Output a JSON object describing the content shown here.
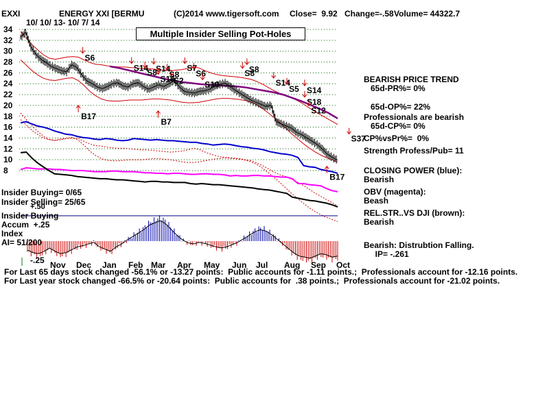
{
  "header": {
    "ticker": "EXXI",
    "company": "ENERGY XXI [BERMU",
    "copyright": "(C)2014 www.tigersoft.com",
    "close": "Close=  9.92",
    "change": "Change=-.58",
    "volume": "Volume= 44322.7",
    "date_range": "10/ 10/ 13- 10/ 7/ 14"
  },
  "chart_title": "Multiple Insider Selling Pot-Holes",
  "right_panel": [
    {
      "text": "BEARISH PRICE TREND",
      "bold": true
    },
    {
      "text": "   65d-PR%= 0%"
    },
    {
      "text": "   65d-OP%= 22%"
    },
    {
      "text": "Professionals are bearish"
    },
    {
      "text": "   65d-CP%= 0%"
    },
    {
      "text": "CP%vsPr%=  0%"
    },
    {
      "text": "Strength Profess/Pub= 11"
    },
    {
      "text": "CLOSING POWER (blue):"
    },
    {
      "text": "Bearish"
    },
    {
      "text": "OBV (magenta):"
    },
    {
      "text": "Beash"
    },
    {
      "text": "REL.STR..VS DJI (brown):"
    },
    {
      "text": "Bearish"
    },
    {
      "text": "Bearish: Distrubtion Falling."
    },
    {
      "text": "     IP= -.261"
    }
  ],
  "left_panel": {
    "insider_buying": "Insider Buying= 0/65",
    "insider_selling": "Insider Selling= 25/65",
    "plus50": "+.50",
    "insider_buying_label": "Insider Buying",
    "accum": "Accum  +.25",
    "index": "Index",
    "ai": "AI= 51/200",
    "minus25": "-.25"
  },
  "footer": {
    "line1": "For Last 65 days stock changed -56.1% or -13.27 points:  Public accounts for -1.11 points.;  Professionals account for -12.16 points.",
    "line2": "For Last year stock changed -66.5% or -20.64 points:  Public accounts for  .38 points.;  Professionals account for -21.02 points."
  },
  "colors": {
    "price": "#000000",
    "bands": "#cc0000",
    "ma": "#800080",
    "closing_power": "#0000cc",
    "obv": "#ff00ff",
    "relstr": "#000000",
    "signal": "#cc0000",
    "accum_pos": "#0000aa",
    "accum_neg": "#cc0000",
    "grid": "#006600"
  },
  "chart_data": {
    "type": "line",
    "y_ticks": [
      34,
      32,
      30,
      28,
      26,
      24,
      22,
      20,
      18,
      16,
      14,
      12,
      10,
      8
    ],
    "ylim": [
      8,
      35
    ],
    "x_months": [
      "Nov",
      "Dec",
      "Jan",
      "Feb",
      "Mar",
      "Apr",
      "May",
      "Jun",
      "Jul",
      "Aug",
      "Sep",
      "Oct"
    ],
    "price_weekly": [
      32.6,
      33.5,
      30.8,
      29.4,
      28.5,
      27.9,
      27.2,
      26.8,
      26.4,
      26.2,
      27.5,
      27.0,
      25.6,
      24.5,
      24.0,
      23.4,
      23.1,
      23.5,
      24.0,
      24.2,
      23.6,
      23.4,
      24.0,
      24.2,
      23.5,
      23.0,
      23.4,
      23.8,
      23.5,
      24.0,
      24.6,
      23.5,
      22.6,
      22.4,
      22.3,
      22.6,
      22.7,
      23.0,
      23.6,
      23.9,
      24.1,
      23.5,
      22.8,
      22.2,
      21.6,
      21.0,
      20.6,
      20.2,
      19.8,
      20.0,
      17.0,
      16.6,
      16.2,
      15.8,
      15.0,
      14.6,
      14.0,
      13.4,
      12.8,
      12.0,
      11.0,
      10.4,
      9.92
    ],
    "upper_band": [
      33.6,
      32.4,
      31.2,
      30.2,
      29.3,
      28.7,
      28.5,
      28.7,
      28.9,
      29.0,
      28.9,
      28.4,
      27.9,
      27.6,
      27.5,
      27.3,
      27.2,
      27.1,
      27.1,
      27.0,
      26.9,
      26.8,
      26.8,
      26.7,
      26.6,
      26.5,
      26.4,
      26.5,
      26.6,
      26.8,
      27.1,
      26.9,
      26.4,
      26.0,
      25.7,
      25.5,
      25.4,
      25.3,
      25.2,
      25.0,
      24.8,
      24.4,
      23.9,
      23.3,
      22.7,
      22.2,
      21.9,
      21.4,
      20.9,
      20.3,
      19.6,
      18.9,
      18.3,
      17.7,
      17.1,
      16.5
    ],
    "lower_band": [
      28.4,
      27.4,
      26.4,
      25.6,
      25.0,
      24.7,
      24.6,
      24.8,
      25.0,
      25.1,
      24.6,
      23.7,
      22.6,
      21.8,
      21.2,
      20.9,
      20.8,
      20.8,
      20.9,
      21.0,
      21.0,
      21.0,
      21.1,
      21.2,
      21.2,
      21.1,
      21.0,
      20.8,
      20.6,
      20.5,
      20.5,
      20.6,
      20.8,
      21.0,
      21.2,
      21.3,
      21.3,
      21.2,
      21.1,
      20.9,
      20.6,
      20.1,
      19.4,
      18.6,
      17.7,
      16.8,
      15.8,
      14.8,
      13.9,
      13.0,
      12.2,
      11.5,
      10.9,
      10.4,
      10.0,
      9.6
    ],
    "moving_avg": [
      27.2,
      26.9,
      26.5,
      26.1,
      25.7,
      25.3,
      24.9,
      24.6,
      24.3,
      24.1,
      23.9,
      23.8,
      23.7,
      23.6,
      23.5,
      23.3,
      23.0,
      22.7,
      22.4,
      22.0,
      21.4,
      20.8,
      20.1,
      19.4,
      18.6,
      17.6
    ],
    "closing_power": [
      16.8,
      17.0,
      16.6,
      16.2,
      16.0,
      15.7,
      15.3,
      15.0,
      14.7,
      14.6,
      14.3,
      14.1,
      14.0,
      13.8,
      13.7,
      13.9,
      13.8,
      13.6,
      13.5,
      13.6,
      13.9,
      13.8,
      13.7,
      13.6,
      13.7,
      13.6,
      13.5,
      13.5,
      13.4,
      13.3,
      13.2,
      13.2,
      13.0,
      12.9,
      12.7,
      12.8,
      12.9,
      12.8,
      12.6,
      12.4,
      12.3,
      12.1,
      12.0,
      11.8,
      11.5,
      11.3,
      11.1,
      11.0,
      10.8,
      10.4,
      8.9,
      8.7,
      8.6,
      8.2,
      8.0,
      7.8,
      7.5
    ],
    "obv": [
      8.2,
      8.5,
      8.4,
      8.3,
      8.3,
      8.3,
      8.2,
      8.2,
      8.1,
      8.0,
      8.0,
      8.0,
      7.9,
      7.8,
      7.8,
      7.8,
      7.9,
      7.9,
      7.8,
      7.8,
      7.8,
      7.7,
      7.6,
      7.6,
      7.5,
      7.5,
      7.4,
      7.5,
      7.5,
      7.4,
      7.3,
      7.3,
      7.4,
      7.4,
      7.3,
      7.3,
      7.2,
      7.0,
      7.1,
      7.0,
      7.0,
      7.1,
      7.1,
      7.0,
      7.0,
      6.9,
      6.8,
      6.8,
      6.5,
      5.6,
      5.6,
      5.4,
      5.3,
      5.2,
      4.7,
      4.3,
      4.1
    ],
    "relstr": [
      11.3,
      11.4,
      10.3,
      9.4,
      8.7,
      8.0,
      7.4,
      7.3,
      7.2,
      7.1,
      6.9,
      6.8,
      6.7,
      6.6,
      6.5,
      6.5,
      6.4,
      6.3,
      6.3,
      6.2,
      6.1,
      6.0,
      5.9,
      6.0,
      6.0,
      5.9,
      5.9,
      5.8,
      5.8,
      5.8,
      5.6,
      5.5,
      5.6,
      5.5,
      5.4,
      5.4,
      5.3,
      5.2,
      5.1,
      5.0,
      4.9,
      4.8,
      4.6,
      4.5,
      4.4,
      4.2,
      4.0,
      3.8,
      3.1,
      2.9,
      2.7,
      2.5,
      2.4,
      2.2,
      2.0,
      1.7,
      1.3
    ],
    "accum_index": [
      -0.16,
      -0.2,
      -0.22,
      -0.18,
      -0.12,
      -0.18,
      -0.22,
      -0.2,
      -0.15,
      -0.1,
      -0.08,
      -0.05,
      -0.02,
      -0.1,
      -0.14,
      -0.18,
      -0.1,
      -0.05,
      0.02,
      0.08,
      0.14,
      0.2,
      0.28,
      0.32,
      0.36,
      0.3,
      0.2,
      0.1,
      0.02,
      -0.03,
      -0.05,
      -0.02,
      -0.04,
      -0.07,
      -0.1,
      -0.12,
      -0.1,
      -0.06,
      -0.02,
      0.04,
      0.1,
      0.16,
      0.2,
      0.18,
      0.12,
      0.04,
      -0.04,
      -0.12,
      -0.2,
      -0.26,
      -0.28,
      -0.3,
      -0.26,
      -0.22,
      -0.24,
      -0.28,
      -0.26
    ],
    "signals": [
      {
        "label": "S6",
        "x": 0.14,
        "y": 29.5,
        "dir": "down"
      },
      {
        "label": "S14",
        "x": 0.25,
        "y": 27.6,
        "dir": "down"
      },
      {
        "label": "S8",
        "x": 0.28,
        "y": 26.8,
        "dir": "down"
      },
      {
        "label": "S14",
        "x": 0.3,
        "y": 27.5,
        "dir": "down"
      },
      {
        "label": "S16",
        "x": 0.31,
        "y": 25.6,
        "dir": "down"
      },
      {
        "label": "S8",
        "x": 0.33,
        "y": 26.4,
        "dir": "down"
      },
      {
        "label": "S2",
        "x": 0.34,
        "y": 25.3,
        "dir": "down"
      },
      {
        "label": "S7",
        "x": 0.37,
        "y": 27.6,
        "dir": "down"
      },
      {
        "label": "S6",
        "x": 0.39,
        "y": 26.6,
        "dir": "down"
      },
      {
        "label": "S10",
        "x": 0.41,
        "y": 24.6,
        "dir": "down"
      },
      {
        "label": "S8",
        "x": 0.5,
        "y": 26.7,
        "dir": "down"
      },
      {
        "label": "S8",
        "x": 0.51,
        "y": 27.4,
        "dir": "down"
      },
      {
        "label": "S14",
        "x": 0.57,
        "y": 24.9,
        "dir": "down"
      },
      {
        "label": "S5",
        "x": 0.6,
        "y": 23.8,
        "dir": "down"
      },
      {
        "label": "S14",
        "x": 0.64,
        "y": 23.5,
        "dir": "down"
      },
      {
        "label": "S18",
        "x": 0.64,
        "y": 21.4,
        "dir": "down"
      },
      {
        "label": "S12",
        "x": 0.65,
        "y": 19.8,
        "dir": "down"
      },
      {
        "label": "S37",
        "x": 0.74,
        "y": 14.6,
        "dir": "down"
      },
      {
        "label": "B17",
        "x": 0.13,
        "y": 20.0,
        "dir": "up"
      },
      {
        "label": "B7",
        "x": 0.31,
        "y": 19.0,
        "dir": "up"
      },
      {
        "label": "B17",
        "x": 0.69,
        "y": 8.8,
        "dir": "up"
      }
    ]
  }
}
